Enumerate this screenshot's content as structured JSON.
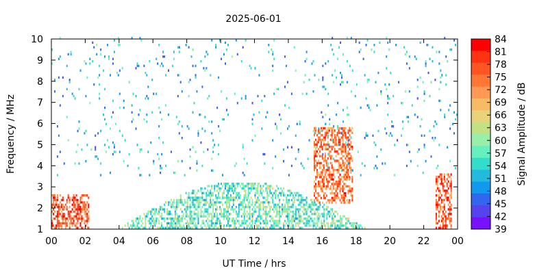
{
  "chart_data": {
    "type": "heatmap",
    "title": "2025-06-01",
    "xlabel": "UT Time / hrs",
    "ylabel": "Frequency / MHz",
    "xlim": [
      0,
      24
    ],
    "ylim": [
      1,
      10
    ],
    "x_ticks": [
      "00",
      "02",
      "04",
      "06",
      "08",
      "10",
      "12",
      "14",
      "16",
      "18",
      "20",
      "22",
      "00"
    ],
    "y_ticks": [
      "1",
      "2",
      "3",
      "4",
      "5",
      "6",
      "7",
      "8",
      "9",
      "10"
    ],
    "colorbar": {
      "label": "Signal Amplitude / dB",
      "min": 39,
      "max": 84,
      "ticks": [
        "84",
        "81",
        "78",
        "75",
        "72",
        "69",
        "66",
        "63",
        "60",
        "57",
        "54",
        "51",
        "48",
        "45",
        "42",
        "39"
      ],
      "colors": [
        "#ff0000",
        "#ff3311",
        "#ff5522",
        "#ff7733",
        "#ff9955",
        "#f7bb66",
        "#e8d27a",
        "#c4e084",
        "#99eeaa",
        "#66f0c0",
        "#33ddcc",
        "#22bbdd",
        "#1199ee",
        "#3366ee",
        "#5544ee",
        "#7711ff"
      ]
    },
    "grid": false,
    "features": [
      {
        "x_start": 4.0,
        "x_end": 18.5,
        "y_min": 1.0,
        "y_max": 3.2,
        "amplitude": 57
      },
      {
        "x_start": 0.0,
        "x_end": 2.2,
        "y_min": 1.0,
        "y_max": 2.6,
        "amplitude": 78
      },
      {
        "x_start": 15.5,
        "x_end": 17.8,
        "y_min": 2.2,
        "y_max": 5.8,
        "amplitude": 75
      },
      {
        "x_start": 22.7,
        "x_end": 23.6,
        "y_min": 1.0,
        "y_max": 3.6,
        "amplitude": 78
      },
      {
        "x_start": 0.0,
        "x_end": 24.0,
        "y_min": 3.5,
        "y_max": 10.0,
        "amplitude": 51
      }
    ]
  }
}
